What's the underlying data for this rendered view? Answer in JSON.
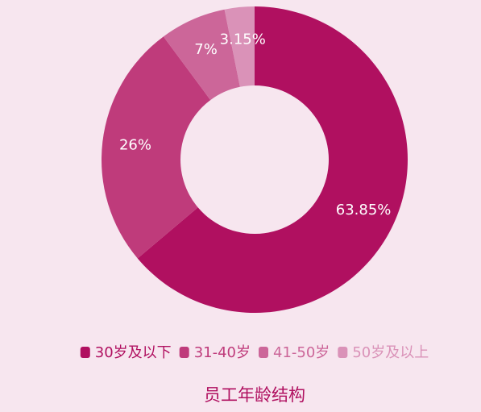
{
  "chart_data": {
    "type": "pie",
    "title": "员工年龄结构",
    "categories": [
      "30岁及以下",
      "31-40岁",
      "41-50岁",
      "50岁及以上"
    ],
    "values": [
      63.85,
      26,
      7,
      3.15
    ],
    "value_labels": [
      "63.85%",
      "26%",
      "7%",
      "3.15%"
    ],
    "colors": [
      "#b01060",
      "#bf3b7b",
      "#cc6699",
      "#da92b8"
    ],
    "legend": "bottom"
  }
}
